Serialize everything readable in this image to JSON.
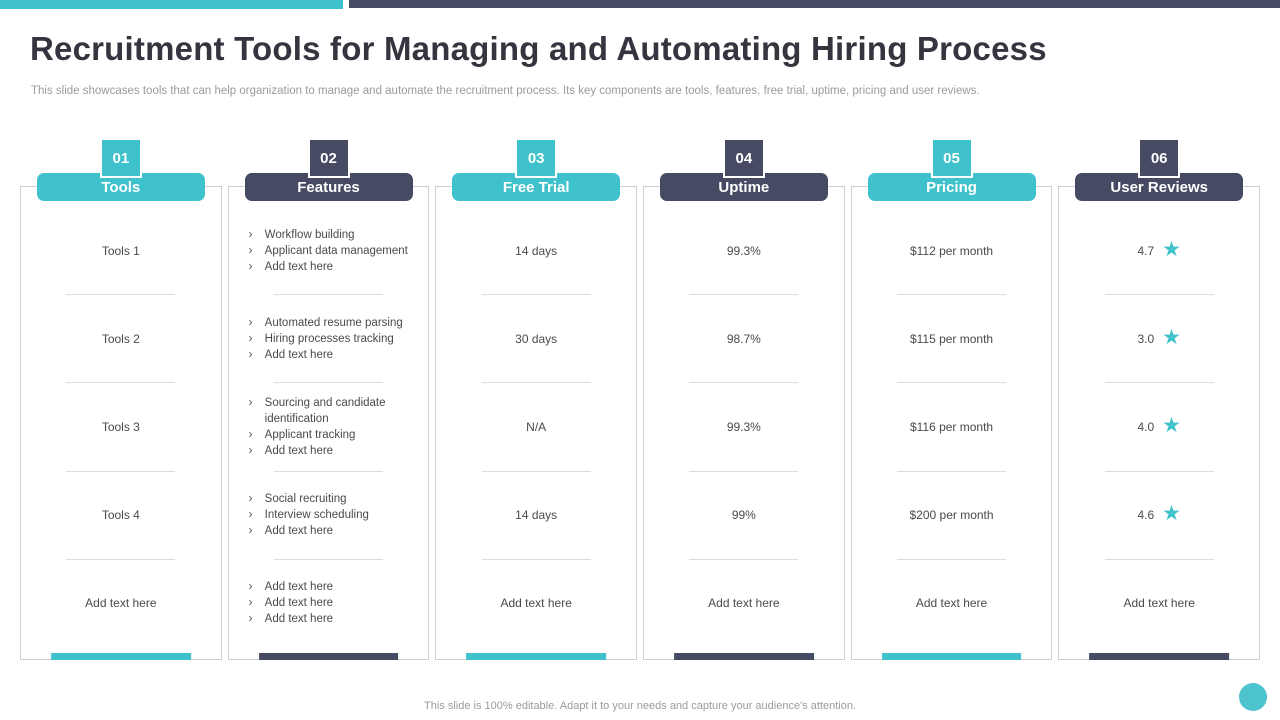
{
  "topbar": {
    "teal_color": "#3fc2cb",
    "navy_color": "#474a63"
  },
  "header": {
    "title": "Recruitment Tools for Managing and Automating Hiring Process",
    "subtitle": "This slide showcases tools that can help organization to manage and automate the recruitment process. Its key components are tools, features, free trial, uptime, pricing and user reviews."
  },
  "colors": {
    "accent_teal": "#3fc2cb",
    "accent_navy": "#474a63",
    "body_text": "#4a4a4a",
    "muted_text": "#9b9b9b",
    "box_border": "#cfcfcf"
  },
  "icons": {
    "bullet_glyph": "›",
    "star_glyph": "★"
  },
  "table": {
    "columns": [
      {
        "number": "01",
        "label": "Tools",
        "accent": "teal",
        "rows": [
          {
            "type": "text",
            "value": "Tools 1"
          },
          {
            "type": "text",
            "value": "Tools 2"
          },
          {
            "type": "text",
            "value": "Tools 3"
          },
          {
            "type": "text",
            "value": "Tools 4"
          },
          {
            "type": "text",
            "value": "Add text here"
          }
        ]
      },
      {
        "number": "02",
        "label": "Features",
        "accent": "navy",
        "rows": [
          {
            "type": "bullets",
            "items": [
              "Workflow building",
              "Applicant data management",
              "Add text here"
            ]
          },
          {
            "type": "bullets",
            "items": [
              "Automated resume parsing",
              "Hiring processes tracking",
              "Add text here"
            ]
          },
          {
            "type": "bullets",
            "items": [
              "Sourcing and candidate identification",
              "Applicant tracking",
              "Add text here"
            ]
          },
          {
            "type": "bullets",
            "items": [
              "Social recruiting",
              "Interview  scheduling",
              "Add text here"
            ]
          },
          {
            "type": "bullets",
            "items": [
              "Add text here",
              "Add text here",
              "Add text here"
            ]
          }
        ]
      },
      {
        "number": "03",
        "label": "Free Trial",
        "accent": "teal",
        "rows": [
          {
            "type": "text",
            "value": "14 days"
          },
          {
            "type": "text",
            "value": "30 days"
          },
          {
            "type": "text",
            "value": "N/A"
          },
          {
            "type": "text",
            "value": "14 days"
          },
          {
            "type": "text",
            "value": "Add text here"
          }
        ]
      },
      {
        "number": "04",
        "label": "Uptime",
        "accent": "navy",
        "rows": [
          {
            "type": "text",
            "value": "99.3%"
          },
          {
            "type": "text",
            "value": "98.7%"
          },
          {
            "type": "text",
            "value": "99.3%"
          },
          {
            "type": "text",
            "value": "99%"
          },
          {
            "type": "text",
            "value": "Add text here"
          }
        ]
      },
      {
        "number": "05",
        "label": "Pricing",
        "accent": "teal",
        "rows": [
          {
            "type": "text",
            "value": "$112 per month"
          },
          {
            "type": "text",
            "value": "$115 per month"
          },
          {
            "type": "text",
            "value": "$116 per month"
          },
          {
            "type": "text",
            "value": "$200 per month"
          },
          {
            "type": "text",
            "value": "Add text here"
          }
        ]
      },
      {
        "number": "06",
        "label": "User Reviews",
        "accent": "navy",
        "rows": [
          {
            "type": "rating",
            "value": "4.7"
          },
          {
            "type": "rating",
            "value": "3.0"
          },
          {
            "type": "rating",
            "value": "4.0"
          },
          {
            "type": "rating",
            "value": "4.6"
          },
          {
            "type": "text",
            "value": "Add text here"
          }
        ]
      }
    ]
  },
  "footer": {
    "note": "This slide is 100% editable.  Adapt it to your needs and capture your audience's attention."
  }
}
